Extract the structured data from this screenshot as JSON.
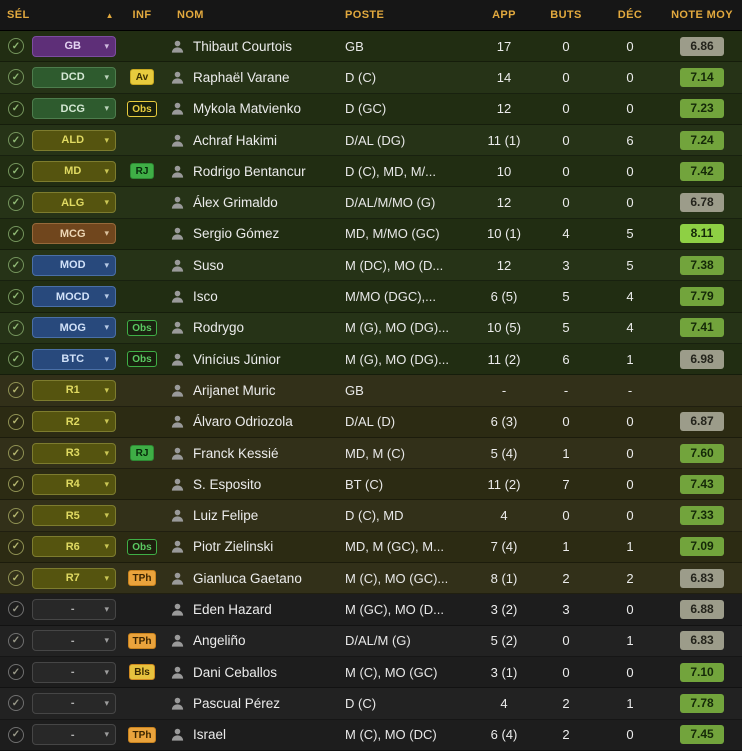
{
  "header": {
    "sel": "SÉL",
    "sort_icon": "▲",
    "inf": "INF",
    "nom": "NOM",
    "poste": "POSTE",
    "app": "APP",
    "buts": "BUTS",
    "dec": "DÉC",
    "note": "NOTE MOY"
  },
  "colors": {
    "header_text": "#e2a93e",
    "starting_row_bg": "#212d12",
    "bench_row_bg": "#2c2b13",
    "reserve_row_bg": "#1d1d1d",
    "rating_gray": "#9c9c8a",
    "rating_green": "#72a43c",
    "rating_bright_green": "#8ed044",
    "pill_gk_purple": "#5e2f78",
    "pill_def_green": "#2e5b2e",
    "pill_olive": "#55540f",
    "pill_brown": "#70461d",
    "pill_att_blue": "#28497c"
  },
  "rows": [
    {
      "group": "starting",
      "pos": "GB",
      "pos_style": "purple",
      "inf": null,
      "name": "Thibaut Courtois",
      "poste": "GB",
      "app": "17",
      "buts": "0",
      "dec": "0",
      "note": "6.86",
      "note_style": "gray"
    },
    {
      "group": "starting",
      "pos": "DCD",
      "pos_style": "green",
      "inf": {
        "label": "Av",
        "style": "yellow"
      },
      "name": "Raphaël Varane",
      "poste": "D (C)",
      "app": "14",
      "buts": "0",
      "dec": "0",
      "note": "7.14",
      "note_style": "green"
    },
    {
      "group": "starting",
      "pos": "DCG",
      "pos_style": "green",
      "inf": {
        "label": "Obs",
        "style": "yellow-outline"
      },
      "name": "Mykola Matvienko",
      "poste": "D (GC)",
      "app": "12",
      "buts": "0",
      "dec": "0",
      "note": "7.23",
      "note_style": "green"
    },
    {
      "group": "starting",
      "pos": "ALD",
      "pos_style": "olive",
      "inf": null,
      "name": "Achraf Hakimi",
      "poste": "D/AL (DG)",
      "app": "11 (1)",
      "buts": "0",
      "dec": "6",
      "note": "7.24",
      "note_style": "green"
    },
    {
      "group": "starting",
      "pos": "MD",
      "pos_style": "olive",
      "inf": {
        "label": "RJ",
        "style": "green"
      },
      "name": "Rodrigo Bentancur",
      "poste": "D (C), MD, M/...",
      "app": "10",
      "buts": "0",
      "dec": "0",
      "note": "7.42",
      "note_style": "green"
    },
    {
      "group": "starting",
      "pos": "ALG",
      "pos_style": "olive",
      "inf": null,
      "name": "Álex Grimaldo",
      "poste": "D/AL/M/MO (G)",
      "app": "12",
      "buts": "0",
      "dec": "0",
      "note": "6.78",
      "note_style": "gray"
    },
    {
      "group": "starting",
      "pos": "MCG",
      "pos_style": "brown",
      "inf": null,
      "name": "Sergio Gómez",
      "poste": "MD, M/MO (GC)",
      "app": "10 (1)",
      "buts": "4",
      "dec": "5",
      "note": "8.11",
      "note_style": "bright"
    },
    {
      "group": "starting",
      "pos": "MOD",
      "pos_style": "blue",
      "inf": null,
      "name": "Suso",
      "poste": "M (DC), MO (D...",
      "app": "12",
      "buts": "3",
      "dec": "5",
      "note": "7.38",
      "note_style": "green"
    },
    {
      "group": "starting",
      "pos": "MOCD",
      "pos_style": "blue",
      "inf": null,
      "name": "Isco",
      "poste": "M/MO (DGC),...",
      "app": "6 (5)",
      "buts": "5",
      "dec": "4",
      "note": "7.79",
      "note_style": "green"
    },
    {
      "group": "starting",
      "pos": "MOG",
      "pos_style": "blue",
      "inf": {
        "label": "Obs",
        "style": "green-outline"
      },
      "name": "Rodrygo",
      "poste": "M (G), MO (DG)...",
      "app": "10 (5)",
      "buts": "5",
      "dec": "4",
      "note": "7.41",
      "note_style": "green"
    },
    {
      "group": "starting",
      "pos": "BTC",
      "pos_style": "blue",
      "inf": {
        "label": "Obs",
        "style": "green-outline"
      },
      "name": "Vinícius Júnior",
      "poste": "M (G), MO (DG)...",
      "app": "11 (2)",
      "buts": "6",
      "dec": "1",
      "note": "6.98",
      "note_style": "gray"
    },
    {
      "group": "bench",
      "pos": "R1",
      "pos_style": "olive",
      "inf": null,
      "name": "Arijanet Muric",
      "poste": "GB",
      "app": "-",
      "buts": "-",
      "dec": "-",
      "note": "",
      "note_style": ""
    },
    {
      "group": "bench",
      "pos": "R2",
      "pos_style": "olive",
      "inf": null,
      "name": "Álvaro Odriozola",
      "poste": "D/AL (D)",
      "app": "6 (3)",
      "buts": "0",
      "dec": "0",
      "note": "6.87",
      "note_style": "gray"
    },
    {
      "group": "bench",
      "pos": "R3",
      "pos_style": "olive",
      "inf": {
        "label": "RJ",
        "style": "green"
      },
      "name": "Franck Kessié",
      "poste": "MD, M (C)",
      "app": "5 (4)",
      "buts": "1",
      "dec": "0",
      "note": "7.60",
      "note_style": "green"
    },
    {
      "group": "bench",
      "pos": "R4",
      "pos_style": "olive",
      "inf": null,
      "name": "S. Esposito",
      "poste": "BT (C)",
      "app": "11 (2)",
      "buts": "7",
      "dec": "0",
      "note": "7.43",
      "note_style": "green"
    },
    {
      "group": "bench",
      "pos": "R5",
      "pos_style": "olive",
      "inf": null,
      "name": "Luiz Felipe",
      "poste": "D (C), MD",
      "app": "4",
      "buts": "0",
      "dec": "0",
      "note": "7.33",
      "note_style": "green"
    },
    {
      "group": "bench",
      "pos": "R6",
      "pos_style": "olive",
      "inf": {
        "label": "Obs",
        "style": "green-outline"
      },
      "name": "Piotr Zielinski",
      "poste": "MD, M (GC), M...",
      "app": "7 (4)",
      "buts": "1",
      "dec": "1",
      "note": "7.09",
      "note_style": "green"
    },
    {
      "group": "bench",
      "pos": "R7",
      "pos_style": "olive",
      "inf": {
        "label": "TPh",
        "style": "orange"
      },
      "name": "Gianluca Gaetano",
      "poste": "M (C), MO (GC)...",
      "app": "8 (1)",
      "buts": "2",
      "dec": "2",
      "note": "6.83",
      "note_style": "gray"
    },
    {
      "group": "rest",
      "pos": "-",
      "pos_style": "dash",
      "inf": null,
      "name": "Eden Hazard",
      "poste": "M (GC), MO (D...",
      "app": "3 (2)",
      "buts": "3",
      "dec": "0",
      "note": "6.88",
      "note_style": "gray"
    },
    {
      "group": "rest",
      "pos": "-",
      "pos_style": "dash",
      "inf": {
        "label": "TPh",
        "style": "orange"
      },
      "name": "Angeliño",
      "poste": "D/AL/M (G)",
      "app": "5 (2)",
      "buts": "0",
      "dec": "1",
      "note": "6.83",
      "note_style": "gray"
    },
    {
      "group": "rest",
      "pos": "-",
      "pos_style": "dash",
      "inf": {
        "label": "Bls",
        "style": "gold"
      },
      "name": "Dani Ceballos",
      "poste": "M (C), MO (GC)",
      "app": "3 (1)",
      "buts": "0",
      "dec": "0",
      "note": "7.10",
      "note_style": "green"
    },
    {
      "group": "rest",
      "pos": "-",
      "pos_style": "dash",
      "inf": null,
      "name": "Pascual Pérez",
      "poste": "D (C)",
      "app": "4",
      "buts": "2",
      "dec": "1",
      "note": "7.78",
      "note_style": "green"
    },
    {
      "group": "rest",
      "pos": "-",
      "pos_style": "dash",
      "inf": {
        "label": "TPh",
        "style": "orange"
      },
      "name": "Israel",
      "poste": "M (C), MO (DC)",
      "app": "6 (4)",
      "buts": "2",
      "dec": "0",
      "note": "7.45",
      "note_style": "green"
    }
  ]
}
